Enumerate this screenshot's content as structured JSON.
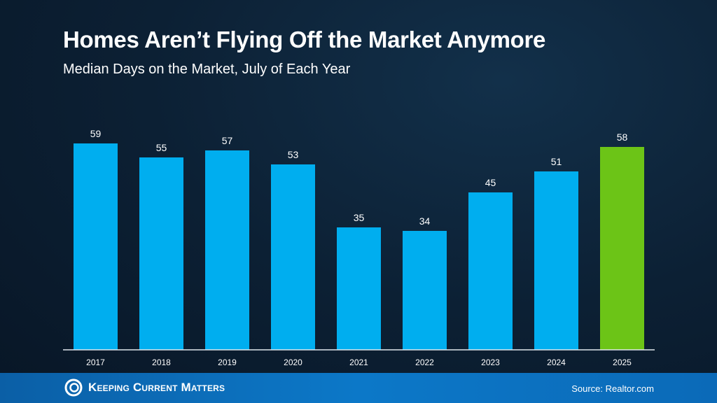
{
  "chart_data": {
    "type": "bar",
    "title": "Homes Aren’t Flying Off the Market Anymore",
    "subtitle": "Median Days on the Market, July of Each Year",
    "categories": [
      "2017",
      "2018",
      "2019",
      "2020",
      "2021",
      "2022",
      "2023",
      "2024",
      "2025"
    ],
    "values": [
      59,
      55,
      57,
      53,
      35,
      34,
      45,
      51,
      58
    ],
    "ylim": [
      0,
      60
    ],
    "grid": false,
    "colors": {
      "default": "#00aeef",
      "highlight": "#6cc417",
      "highlight_category": "2025"
    }
  },
  "footer": {
    "brand": "Keeping Current Matters",
    "source": "Source: Realtor.com"
  }
}
